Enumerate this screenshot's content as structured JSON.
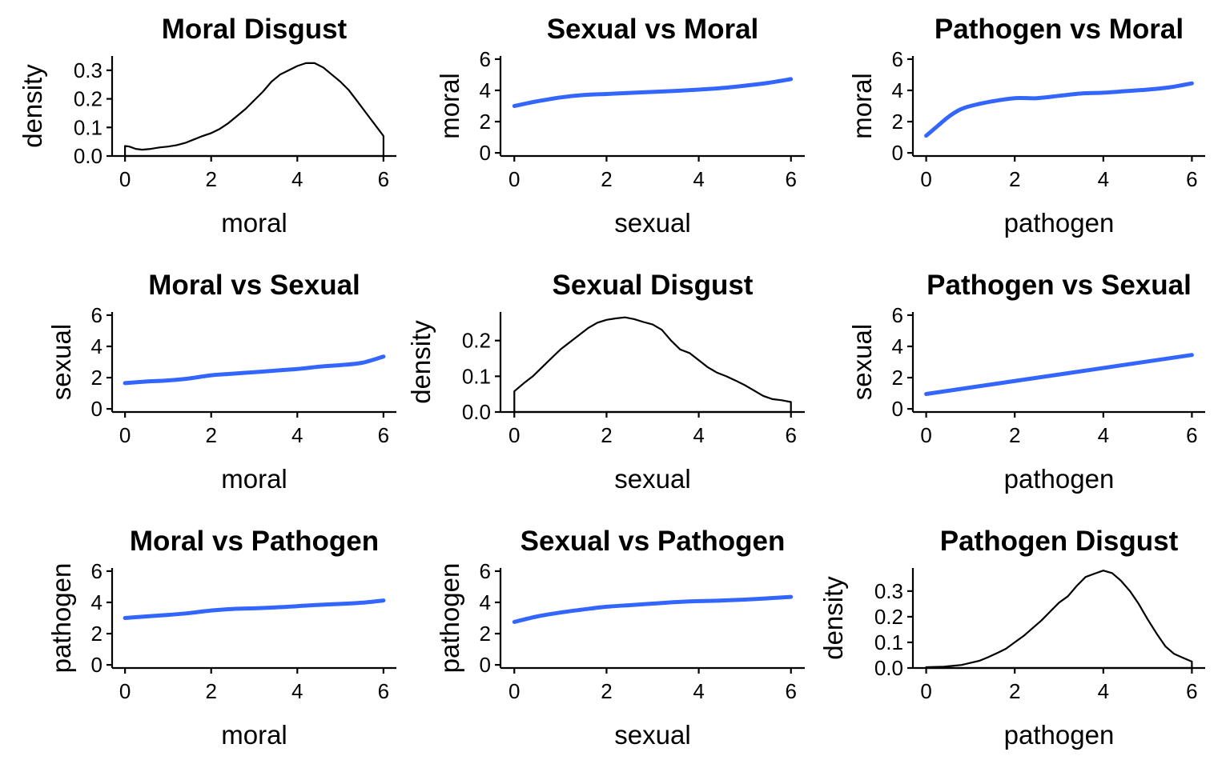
{
  "chart_data": [
    {
      "type": "density",
      "title": "Moral Disgust",
      "xlabel": "moral",
      "ylabel": "density",
      "xlim": [
        -0.3,
        6.3
      ],
      "ylim": [
        0,
        0.35
      ],
      "xticks": [
        0,
        2,
        4,
        6
      ],
      "yticks": [
        0,
        0.1,
        0.2,
        0.3
      ],
      "ytick_labels": [
        "0.0",
        "0.1",
        "0.2",
        "0.3"
      ],
      "x": [
        0,
        0.1,
        0.25,
        0.4,
        0.6,
        0.8,
        1.0,
        1.2,
        1.4,
        1.6,
        1.8,
        2.0,
        2.2,
        2.4,
        2.6,
        2.8,
        3.0,
        3.2,
        3.4,
        3.6,
        3.8,
        4.0,
        4.2,
        4.4,
        4.6,
        4.8,
        5.0,
        5.2,
        5.4,
        5.6,
        5.8,
        6.0
      ],
      "y": [
        0.035,
        0.033,
        0.025,
        0.022,
        0.025,
        0.03,
        0.033,
        0.038,
        0.046,
        0.058,
        0.07,
        0.08,
        0.095,
        0.115,
        0.14,
        0.165,
        0.195,
        0.225,
        0.26,
        0.285,
        0.3,
        0.315,
        0.325,
        0.325,
        0.31,
        0.285,
        0.26,
        0.23,
        0.19,
        0.15,
        0.11,
        0.07
      ]
    },
    {
      "type": "line",
      "title": "Sexual vs Moral",
      "xlabel": "sexual",
      "ylabel": "moral",
      "xlim": [
        -0.3,
        6.3
      ],
      "ylim": [
        -0.2,
        6.2
      ],
      "xticks": [
        0,
        2,
        4,
        6
      ],
      "yticks": [
        0,
        2,
        4,
        6
      ],
      "color": "#3366FF",
      "x": [
        0,
        0.5,
        1,
        1.5,
        2,
        2.5,
        3,
        3.5,
        4,
        4.5,
        5,
        5.5,
        6
      ],
      "y": [
        3.0,
        3.3,
        3.55,
        3.7,
        3.77,
        3.84,
        3.9,
        3.97,
        4.05,
        4.15,
        4.3,
        4.48,
        4.72
      ]
    },
    {
      "type": "line",
      "title": "Pathogen vs Moral",
      "xlabel": "pathogen",
      "ylabel": "moral",
      "xlim": [
        -0.3,
        6.3
      ],
      "ylim": [
        -0.2,
        6.2
      ],
      "xticks": [
        0,
        2,
        4,
        6
      ],
      "yticks": [
        0,
        2,
        4,
        6
      ],
      "color": "#3366FF",
      "x": [
        0,
        0.25,
        0.5,
        0.75,
        1,
        1.5,
        2,
        2.5,
        3,
        3.5,
        4,
        4.5,
        5,
        5.5,
        6
      ],
      "y": [
        1.1,
        1.7,
        2.3,
        2.75,
        3.0,
        3.3,
        3.5,
        3.5,
        3.65,
        3.8,
        3.85,
        3.95,
        4.05,
        4.2,
        4.45
      ]
    },
    {
      "type": "line",
      "title": "Moral vs Sexual",
      "xlabel": "moral",
      "ylabel": "sexual",
      "xlim": [
        -0.3,
        6.3
      ],
      "ylim": [
        -0.2,
        6.2
      ],
      "xticks": [
        0,
        2,
        4,
        6
      ],
      "yticks": [
        0,
        2,
        4,
        6
      ],
      "color": "#3366FF",
      "x": [
        0,
        0.5,
        1,
        1.5,
        2,
        2.5,
        3,
        3.5,
        4,
        4.5,
        5,
        5.5,
        6
      ],
      "y": [
        1.65,
        1.75,
        1.82,
        1.95,
        2.15,
        2.25,
        2.35,
        2.45,
        2.55,
        2.7,
        2.8,
        2.95,
        3.35
      ]
    },
    {
      "type": "density",
      "title": "Sexual Disgust",
      "xlabel": "sexual",
      "ylabel": "density",
      "xlim": [
        -0.3,
        6.3
      ],
      "ylim": [
        0,
        0.28
      ],
      "xticks": [
        0,
        2,
        4,
        6
      ],
      "yticks": [
        0,
        0.1,
        0.2
      ],
      "ytick_labels": [
        "0.0",
        "0.1",
        "0.2"
      ],
      "x": [
        0,
        0.2,
        0.4,
        0.6,
        0.8,
        1.0,
        1.2,
        1.4,
        1.6,
        1.8,
        2.0,
        2.2,
        2.4,
        2.6,
        2.8,
        3.0,
        3.2,
        3.4,
        3.6,
        3.8,
        4.0,
        4.2,
        4.4,
        4.6,
        4.8,
        5.0,
        5.2,
        5.4,
        5.6,
        5.8,
        6.0
      ],
      "y": [
        0.058,
        0.08,
        0.1,
        0.125,
        0.15,
        0.175,
        0.195,
        0.215,
        0.235,
        0.25,
        0.258,
        0.262,
        0.265,
        0.26,
        0.252,
        0.245,
        0.23,
        0.2,
        0.175,
        0.165,
        0.145,
        0.125,
        0.11,
        0.1,
        0.088,
        0.075,
        0.06,
        0.045,
        0.036,
        0.033,
        0.028
      ]
    },
    {
      "type": "line",
      "title": "Pathogen vs Sexual",
      "xlabel": "pathogen",
      "ylabel": "sexual",
      "xlim": [
        -0.3,
        6.3
      ],
      "ylim": [
        -0.2,
        6.2
      ],
      "xticks": [
        0,
        2,
        4,
        6
      ],
      "yticks": [
        0,
        2,
        4,
        6
      ],
      "color": "#3366FF",
      "x": [
        0,
        6
      ],
      "y": [
        0.95,
        3.45
      ]
    },
    {
      "type": "line",
      "title": "Moral vs Pathogen",
      "xlabel": "moral",
      "ylabel": "pathogen",
      "xlim": [
        -0.3,
        6.3
      ],
      "ylim": [
        -0.2,
        6.2
      ],
      "xticks": [
        0,
        2,
        4,
        6
      ],
      "yticks": [
        0,
        2,
        4,
        6
      ],
      "color": "#3366FF",
      "x": [
        0,
        0.5,
        1,
        1.5,
        2,
        2.5,
        3,
        3.5,
        4,
        4.5,
        5,
        5.5,
        6
      ],
      "y": [
        3.0,
        3.1,
        3.2,
        3.32,
        3.48,
        3.58,
        3.62,
        3.68,
        3.76,
        3.84,
        3.9,
        3.98,
        4.12
      ]
    },
    {
      "type": "line",
      "title": "Sexual vs Pathogen",
      "xlabel": "sexual",
      "ylabel": "pathogen",
      "xlim": [
        -0.3,
        6.3
      ],
      "ylim": [
        -0.2,
        6.2
      ],
      "xticks": [
        0,
        2,
        4,
        6
      ],
      "yticks": [
        0,
        2,
        4,
        6
      ],
      "color": "#3366FF",
      "x": [
        0,
        0.5,
        1,
        1.5,
        2,
        2.5,
        3,
        3.5,
        4,
        4.5,
        5,
        5.5,
        6
      ],
      "y": [
        2.75,
        3.1,
        3.35,
        3.55,
        3.72,
        3.82,
        3.92,
        4.02,
        4.08,
        4.12,
        4.18,
        4.26,
        4.35
      ]
    },
    {
      "type": "density",
      "title": "Pathogen Disgust",
      "xlabel": "pathogen",
      "ylabel": "density",
      "xlim": [
        -0.3,
        6.3
      ],
      "ylim": [
        0,
        0.39
      ],
      "xticks": [
        0,
        2,
        4,
        6
      ],
      "yticks": [
        0,
        0.1,
        0.2,
        0.3
      ],
      "ytick_labels": [
        "0.0",
        "0.1",
        "0.2",
        "0.3"
      ],
      "x": [
        0,
        0.4,
        0.8,
        1.0,
        1.2,
        1.4,
        1.6,
        1.8,
        2.0,
        2.2,
        2.4,
        2.6,
        2.8,
        3.0,
        3.2,
        3.4,
        3.6,
        3.8,
        4.0,
        4.2,
        4.4,
        4.6,
        4.8,
        5.0,
        5.2,
        5.4,
        5.6,
        5.8,
        6.0
      ],
      "y": [
        0.003,
        0.005,
        0.012,
        0.02,
        0.028,
        0.042,
        0.058,
        0.075,
        0.1,
        0.125,
        0.155,
        0.185,
        0.22,
        0.255,
        0.28,
        0.32,
        0.355,
        0.368,
        0.38,
        0.37,
        0.34,
        0.3,
        0.25,
        0.19,
        0.135,
        0.085,
        0.055,
        0.04,
        0.025
      ]
    }
  ]
}
